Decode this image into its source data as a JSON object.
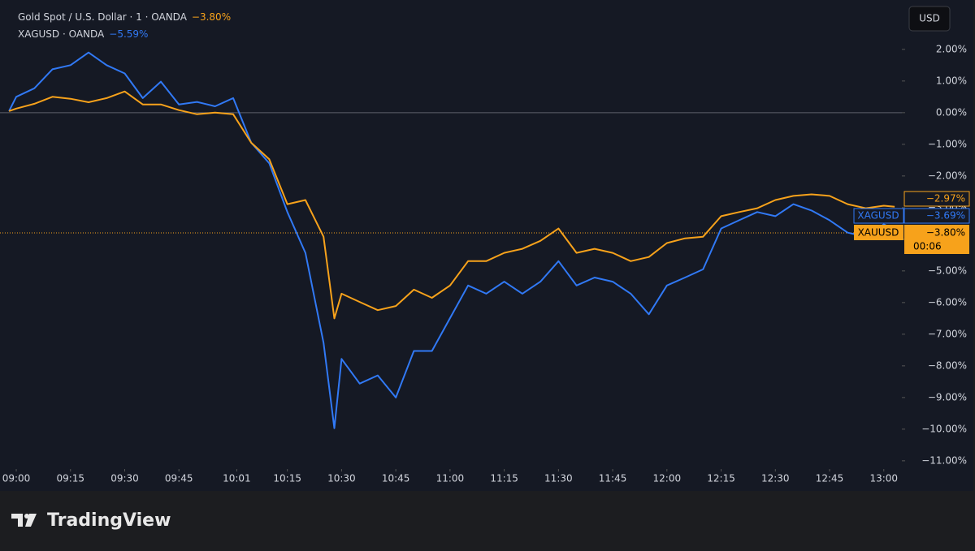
{
  "chart_data": {
    "type": "line",
    "header": [
      {
        "text": "Gold Spot / U.S. Dollar · 1 · OANDA",
        "change": "−3.80%"
      },
      {
        "text": "XAGUSD · OANDA",
        "change": "−5.59%"
      }
    ],
    "currency": "USD",
    "x": [
      538,
      540,
      545,
      550,
      555,
      560,
      565,
      570,
      575,
      580,
      585,
      590,
      595,
      600,
      605,
      610,
      615,
      620,
      625,
      628,
      630,
      635,
      640,
      645,
      650,
      655,
      660,
      665,
      670,
      675,
      680,
      685,
      690,
      695,
      700,
      705,
      710,
      715,
      720,
      725,
      730,
      735,
      740,
      745,
      750,
      755,
      760,
      765,
      770,
      775,
      780,
      783
    ],
    "xlim": [
      535.5,
      785
    ],
    "xticks": [
      {
        "value": 540,
        "label": "09:00"
      },
      {
        "value": 555,
        "label": "09:15"
      },
      {
        "value": 570,
        "label": "09:30"
      },
      {
        "value": 585,
        "label": "09:45"
      },
      {
        "value": 601,
        "label": "10:01"
      },
      {
        "value": 615,
        "label": "10:15"
      },
      {
        "value": 630,
        "label": "10:30"
      },
      {
        "value": 645,
        "label": "10:45"
      },
      {
        "value": 660,
        "label": "11:00"
      },
      {
        "value": 675,
        "label": "11:15"
      },
      {
        "value": 690,
        "label": "11:30"
      },
      {
        "value": 705,
        "label": "11:45"
      },
      {
        "value": 720,
        "label": "12:00"
      },
      {
        "value": 735,
        "label": "12:15"
      },
      {
        "value": 750,
        "label": "12:30"
      },
      {
        "value": 765,
        "label": "12:45"
      },
      {
        "value": 780,
        "label": "13:00"
      }
    ],
    "ylim": [
      -11.26,
      3.56
    ],
    "yticks": [
      {
        "value": 2,
        "label": "2.00%"
      },
      {
        "value": 1,
        "label": "1.00%"
      },
      {
        "value": 0,
        "label": "0.00%"
      },
      {
        "value": -1,
        "label": "−1.00%"
      },
      {
        "value": -2,
        "label": "−2.00%"
      },
      {
        "value": -3,
        "label": "−3.00%"
      },
      {
        "value": -4,
        "label": "−4.00%"
      },
      {
        "value": -5,
        "label": "−5.00%"
      },
      {
        "value": -6,
        "label": "−6.00%"
      },
      {
        "value": -7,
        "label": "−7.00%"
      },
      {
        "value": -8,
        "label": "−8.00%"
      },
      {
        "value": -9,
        "label": "−9.00%"
      },
      {
        "value": -10,
        "label": "−10.00%"
      },
      {
        "value": -11,
        "label": "−11.00%"
      }
    ],
    "series": [
      {
        "name": "XAUUSD",
        "color": "#f7a21b",
        "last_label": "−2.97%",
        "values": [
          0.05,
          0.13,
          0.28,
          0.5,
          0.44,
          0.33,
          0.46,
          0.67,
          0.26,
          0.26,
          0.08,
          -0.05,
          0,
          -0.05,
          -0.95,
          -1.47,
          -2.89,
          -2.76,
          -3.92,
          -6.5,
          -5.72,
          -5.98,
          -6.24,
          -6.11,
          -5.59,
          -5.85,
          -5.46,
          -4.69,
          -4.69,
          -4.43,
          -4.3,
          -4.05,
          -3.66,
          -4.43,
          -4.3,
          -4.43,
          -4.69,
          -4.56,
          -4.12,
          -3.97,
          -3.92,
          -3.27,
          -3.14,
          -3.02,
          -2.76,
          -2.63,
          -2.58,
          -2.63,
          -2.89,
          -3.02,
          -2.94,
          -2.97
        ]
      },
      {
        "name": "XAGUSD",
        "color": "#3179f5",
        "last_label": "−3.69%",
        "values": [
          0.05,
          0.5,
          0.77,
          1.37,
          1.5,
          1.9,
          1.5,
          1.24,
          0.46,
          0.98,
          0.26,
          0.34,
          0.2,
          0.46,
          -0.95,
          -1.6,
          -3.14,
          -4.43,
          -7.27,
          -9.97,
          -7.78,
          -8.56,
          -8.3,
          -9.0,
          -7.53,
          -7.53,
          -6.49,
          -5.46,
          -5.72,
          -5.34,
          -5.72,
          -5.34,
          -4.69,
          -5.46,
          -5.21,
          -5.34,
          -5.72,
          -6.37,
          -5.46,
          -5.21,
          -4.95,
          -3.66,
          -3.4,
          -3.14,
          -3.27,
          -2.89,
          -3.09,
          -3.4,
          -3.79,
          -3.92,
          -3.53,
          -3.69
        ]
      }
    ],
    "price_line": {
      "value": -3.8,
      "label": "−3.80%",
      "countdown": "00:06"
    },
    "brand": "TradingView"
  }
}
